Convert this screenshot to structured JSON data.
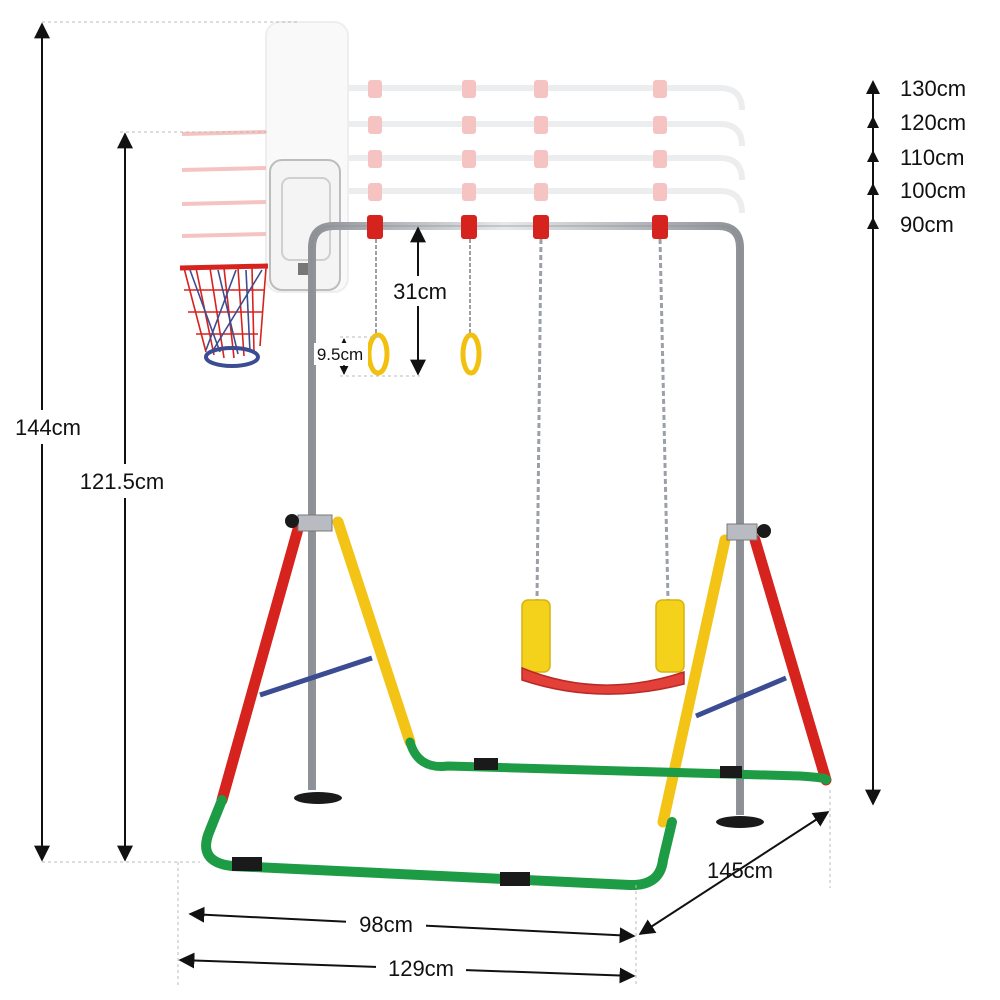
{
  "product": {
    "colors": {
      "pole": "#b8bcc2",
      "red": "#d6231e",
      "yellow": "#f3c316",
      "green": "#1e9b45",
      "blue": "#3c4c92",
      "black": "#1a1a1a",
      "ring": "#f2c10f",
      "seat": "#e3403a",
      "seat_grip": "#f4d21c"
    }
  },
  "dimensions": {
    "overall_height": "144cm",
    "hoop_height": "121.5cm",
    "ring_drop": "31cm",
    "ring_diameter": "9.5cm",
    "inner_width": "98cm",
    "outer_width": "129cm",
    "depth": "145cm"
  },
  "height_settings": [
    "130cm",
    "120cm",
    "110cm",
    "100cm",
    "90cm"
  ]
}
